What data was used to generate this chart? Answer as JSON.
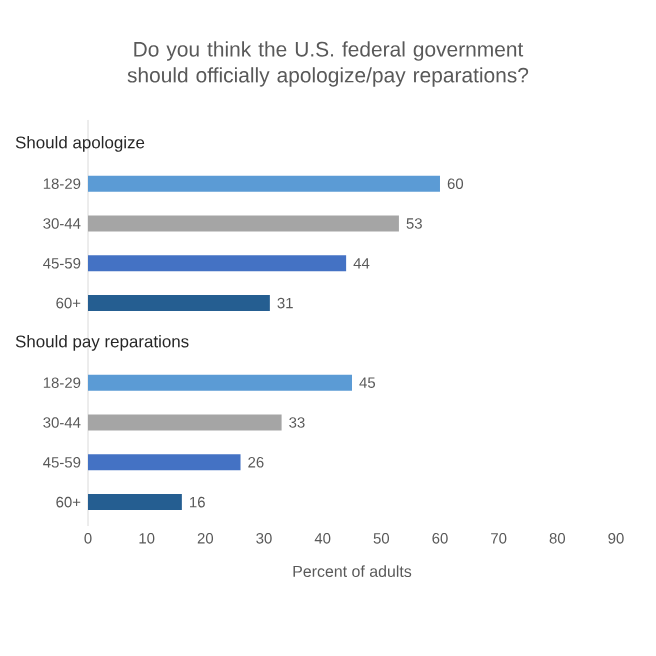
{
  "chart_data": {
    "type": "bar",
    "orientation": "horizontal",
    "title": "Do you think the U.S. federal government should officially apologize/pay reparations?",
    "categories": [
      "Should apologize",
      "18-29",
      "30-44",
      "45-59",
      "60+",
      "Should pay reparations",
      "18-29",
      "30-44",
      "45-59",
      "60+"
    ],
    "values": [
      null,
      60,
      53,
      44,
      31,
      null,
      45,
      33,
      26,
      16
    ],
    "colors": [
      "#5b9bd5",
      "#5b9bd5",
      "#a5a5a5",
      "#4472c4",
      "#255e91",
      "#5b9bd5",
      "#5b9bd5",
      "#a5a5a5",
      "#4472c4",
      "#255e91"
    ],
    "xlabel": "Percent of adults",
    "xlim": [
      0,
      90
    ],
    "xticks": [
      0,
      10,
      20,
      30,
      40,
      50,
      60,
      70,
      80,
      90
    ],
    "data_labels": true
  }
}
